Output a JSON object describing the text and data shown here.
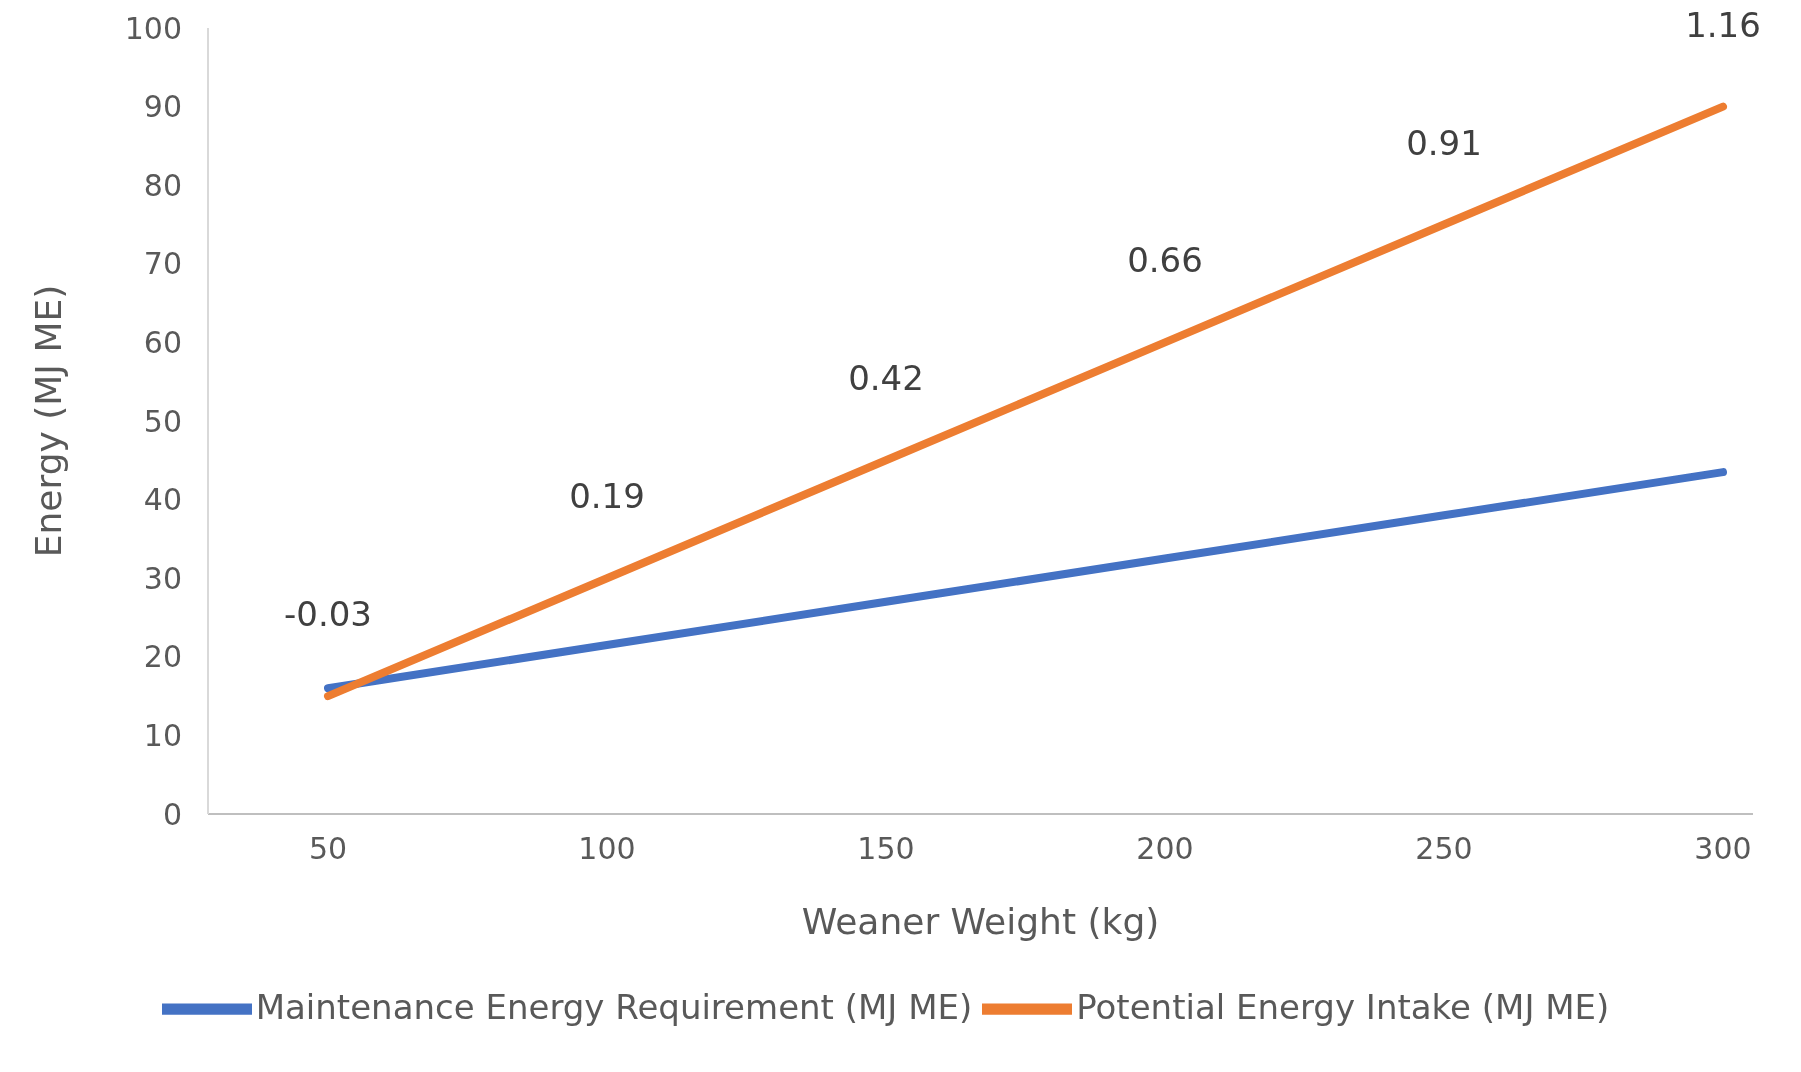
{
  "chart_data": {
    "type": "line",
    "xlabel": "Weaner Weight (kg)",
    "ylabel": "Energy (MJ ME)",
    "categories": [
      "50",
      "100",
      "150",
      "200",
      "250",
      "300"
    ],
    "series": [
      {
        "name": "Maintenance Energy Requirement (MJ ME)",
        "color": "#4472c4",
        "values": [
          16,
          21.5,
          27,
          32.5,
          38,
          43.5
        ]
      },
      {
        "name": "Potential Energy Intake (MJ ME)",
        "color": "#ed7d31",
        "values": [
          15,
          30,
          45,
          60,
          75,
          90
        ]
      }
    ],
    "ylim": [
      0,
      100
    ],
    "yticks": [
      0,
      10,
      20,
      30,
      40,
      50,
      60,
      70,
      80,
      90,
      100
    ],
    "grid": false,
    "legend": "bottom",
    "marker": "none",
    "line_style": "solid",
    "annotations": [
      {
        "text": "-0.03",
        "x": "50",
        "y": 15
      },
      {
        "text": "0.19",
        "x": "100",
        "y": 30
      },
      {
        "text": "0.42",
        "x": "150",
        "y": 45
      },
      {
        "text": "0.66",
        "x": "200",
        "y": 60
      },
      {
        "text": "0.91",
        "x": "250",
        "y": 75
      },
      {
        "text": "1.16",
        "x": "300",
        "y": 90
      }
    ]
  }
}
